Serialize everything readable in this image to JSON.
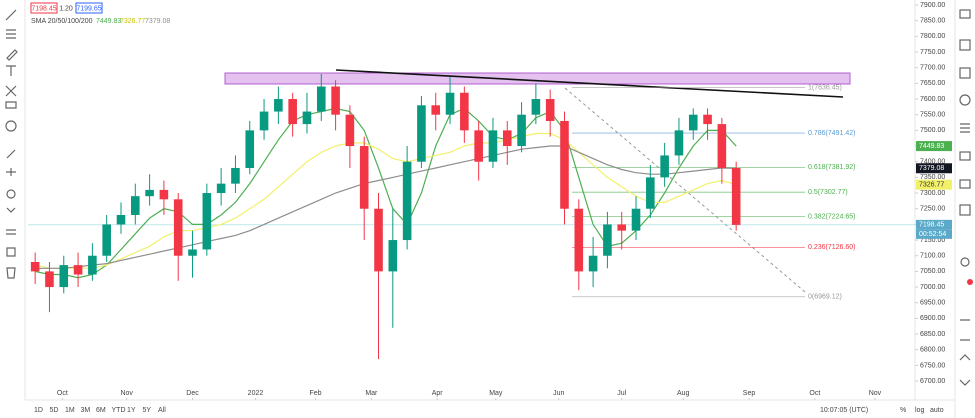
{
  "quote": {
    "bid_label": "7198.45",
    "spread": "1.20",
    "ask": "7199.65"
  },
  "chart_data": {
    "type": "candlestick",
    "indicator_title": "SMA 20/50/100/200",
    "open": [
      7080,
      7050,
      7000,
      7070,
      7040,
      7100,
      7200,
      7230,
      7290,
      7310,
      7280,
      7100,
      7120,
      7300,
      7330,
      7380,
      7500,
      7560,
      7600,
      7520,
      7560,
      7640,
      7550,
      7450,
      7250,
      7050,
      7150,
      7400,
      7580,
      7550,
      7620,
      7500,
      7400,
      7500,
      7450,
      7550,
      7600,
      7530,
      7250,
      7050,
      7100,
      7200,
      7180,
      7250,
      7350,
      7420,
      7500,
      7550,
      7520,
      7380
    ],
    "high": [
      7110,
      7080,
      7100,
      7110,
      7140,
      7230,
      7270,
      7330,
      7360,
      7340,
      7300,
      7180,
      7330,
      7380,
      7420,
      7530,
      7600,
      7640,
      7620,
      7620,
      7680,
      7660,
      7580,
      7480,
      7300,
      7250,
      7450,
      7610,
      7620,
      7670,
      7640,
      7530,
      7540,
      7530,
      7590,
      7650,
      7630,
      7560,
      7280,
      7160,
      7240,
      7240,
      7290,
      7390,
      7460,
      7540,
      7570,
      7570,
      7540,
      7400
    ],
    "low": [
      7010,
      6920,
      6980,
      7000,
      7020,
      7080,
      7170,
      7200,
      7260,
      7230,
      7020,
      7030,
      7100,
      7260,
      7300,
      7360,
      7470,
      7520,
      7480,
      7490,
      7530,
      7500,
      7380,
      7150,
      6770,
      6870,
      7120,
      7380,
      7500,
      7520,
      7460,
      7340,
      7380,
      7390,
      7430,
      7520,
      7480,
      7200,
      6990,
      7000,
      7060,
      7120,
      7150,
      7220,
      7320,
      7390,
      7470,
      7470,
      7330,
      7180
    ],
    "close": [
      7050,
      7000,
      7070,
      7040,
      7100,
      7200,
      7230,
      7290,
      7310,
      7280,
      7100,
      7120,
      7300,
      7330,
      7380,
      7500,
      7560,
      7600,
      7520,
      7560,
      7640,
      7550,
      7450,
      7250,
      7050,
      7150,
      7400,
      7580,
      7550,
      7620,
      7500,
      7400,
      7500,
      7450,
      7550,
      7600,
      7530,
      7250,
      7050,
      7100,
      7200,
      7180,
      7250,
      7350,
      7420,
      7500,
      7550,
      7520,
      7380,
      7198.45
    ],
    "up_color": "#089981",
    "down_color": "#f23645",
    "series": [
      {
        "color": "#4caf50",
        "values": [
          7050,
          7040,
          7040,
          7030,
          7040,
          7070,
          7120,
          7170,
          7220,
          7250,
          7240,
          7200,
          7200,
          7230,
          7270,
          7330,
          7400,
          7470,
          7530,
          7550,
          7560,
          7570,
          7560,
          7500,
          7380,
          7250,
          7200,
          7300,
          7450,
          7550,
          7570,
          7530,
          7480,
          7470,
          7490,
          7540,
          7560,
          7500,
          7350,
          7200,
          7130,
          7140,
          7180,
          7230,
          7300,
          7380,
          7450,
          7500,
          7500,
          7449.83
        ]
      },
      {
        "color": "#f2f06a",
        "values": [
          7070,
          7060,
          7060,
          7060,
          7060,
          7070,
          7090,
          7110,
          7130,
          7160,
          7180,
          7180,
          7190,
          7200,
          7220,
          7250,
          7280,
          7320,
          7360,
          7400,
          7430,
          7450,
          7460,
          7460,
          7440,
          7410,
          7400,
          7410,
          7420,
          7430,
          7450,
          7460,
          7460,
          7470,
          7480,
          7490,
          7490,
          7470,
          7430,
          7390,
          7350,
          7320,
          7290,
          7270,
          7270,
          7290,
          7310,
          7330,
          7340,
          7326.77
        ]
      },
      {
        "color": "#8d8d8d",
        "values": [
          7060,
          7060,
          7060,
          7065,
          7070,
          7075,
          7085,
          7095,
          7105,
          7115,
          7125,
          7135,
          7145,
          7155,
          7165,
          7180,
          7200,
          7220,
          7240,
          7260,
          7280,
          7300,
          7315,
          7330,
          7340,
          7350,
          7360,
          7370,
          7380,
          7390,
          7400,
          7410,
          7420,
          7430,
          7440,
          7445,
          7450,
          7450,
          7430,
          7410,
          7390,
          7375,
          7365,
          7360,
          7360,
          7365,
          7370,
          7375,
          7380,
          7379.08
        ]
      }
    ],
    "countdown": "00:52:54",
    "fib_levels": [
      {
        "value": 7636.45,
        "label": "1(7636.45)"
      },
      {
        "value": 7491.42,
        "label": "0.786(7491.42)"
      },
      {
        "value": 7381.92,
        "label": "0.618(7381.92)"
      },
      {
        "value": 7302.77,
        "label": "0.5(7302.77)"
      },
      {
        "value": 7224.65,
        "label": "0.382(7224.65)"
      },
      {
        "value": 7126.6,
        "label": "0.236(7126.60)"
      },
      {
        "value": 6969.12,
        "label": "0(6969.12)"
      }
    ],
    "fib_colors": [
      "#999999",
      "#5b9bd5",
      "#4caf50",
      "#4caf50",
      "#4caf50",
      "#f23645",
      "#999999"
    ],
    "xlim": [
      0,
      62
    ],
    "xticks": [
      {
        "value": 2.4,
        "label": "Oct"
      },
      {
        "value": 6.9,
        "label": "Nov"
      },
      {
        "value": 11.5,
        "label": "Dec"
      },
      {
        "value": 15.9,
        "label": "2022"
      },
      {
        "value": 20.1,
        "label": "Feb"
      },
      {
        "value": 24.0,
        "label": "Mar"
      },
      {
        "value": 28.6,
        "label": "Apr"
      },
      {
        "value": 32.7,
        "label": "May"
      },
      {
        "value": 37.1,
        "label": "Jun"
      },
      {
        "value": 41.5,
        "label": "Jul"
      },
      {
        "value": 45.8,
        "label": "Aug"
      },
      {
        "value": 50.4,
        "label": "Sep"
      },
      {
        "value": 55.0,
        "label": "Oct"
      },
      {
        "value": 59.2,
        "label": "Nov"
      }
    ],
    "ylim": [
      6646,
      7916
    ],
    "yticks": [
      {
        "value": 6700,
        "label": "6700.00"
      },
      {
        "value": 6750,
        "label": "6750.00"
      },
      {
        "value": 6800,
        "label": "6800.00"
      },
      {
        "value": 6850,
        "label": "6850.00"
      },
      {
        "value": 6900,
        "label": "6900.00"
      },
      {
        "value": 6950,
        "label": "6950.00"
      },
      {
        "value": 7000,
        "label": "7000.00"
      },
      {
        "value": 7050,
        "label": "7050.00"
      },
      {
        "value": 7100,
        "label": "7100.00"
      },
      {
        "value": 7150,
        "label": "7150.00"
      },
      {
        "value": 7200,
        "label": "7200.00"
      },
      {
        "value": 7250,
        "label": "7250.00"
      },
      {
        "value": 7300,
        "label": "7300.00"
      },
      {
        "value": 7350,
        "label": "7350.00"
      },
      {
        "value": 7400,
        "label": "7400.00"
      },
      {
        "value": 7450,
        "label": "7450.00"
      },
      {
        "value": 7500,
        "label": "7500.00"
      },
      {
        "value": 7550,
        "label": "7550.00"
      },
      {
        "value": 7600,
        "label": "7600.00"
      },
      {
        "value": 7650,
        "label": "7650.00"
      },
      {
        "value": 7700,
        "label": "7700.00"
      },
      {
        "value": 7750,
        "label": "7750.00"
      },
      {
        "value": 7800,
        "label": "7800.00"
      },
      {
        "value": 7850,
        "label": "7850.00"
      },
      {
        "value": 7900,
        "label": "7900.00"
      }
    ]
  },
  "bottom_bar": {
    "ranges": [
      "1D",
      "5D",
      "1M",
      "3M",
      "6M",
      "YTD",
      "1Y",
      "5Y",
      "All"
    ],
    "time": "10:07:05 (UTC)",
    "options": [
      "%",
      "log",
      "auto"
    ]
  }
}
